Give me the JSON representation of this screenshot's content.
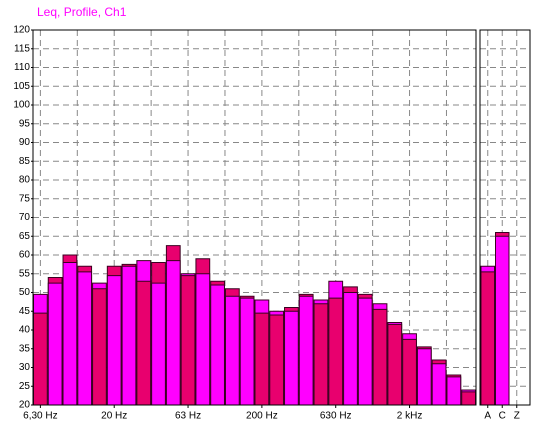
{
  "chart_data": [
    {
      "type": "bar",
      "title": "Leq, Profile, Ch1",
      "categories": [
        "6,30 Hz",
        null,
        null,
        null,
        null,
        "20 Hz",
        null,
        null,
        null,
        null,
        "63 Hz",
        null,
        null,
        null,
        null,
        "200 Hz",
        null,
        null,
        null,
        null,
        "630 Hz",
        null,
        null,
        null,
        null,
        "2 kHz",
        null,
        null,
        null,
        null
      ],
      "series": [
        {
          "color": "#ff00ff",
          "values": [
            49.5,
            52.5,
            58,
            55.5,
            52.5,
            54.5,
            57,
            58.5,
            52.5,
            58.5,
            55,
            55,
            52,
            49,
            48.5,
            48,
            45,
            45,
            49,
            48,
            53,
            50,
            48.5,
            47,
            42,
            39,
            35,
            31,
            27.5,
            24
          ]
        },
        {
          "color": "#e8006e",
          "values": [
            44.5,
            54,
            60,
            57,
            51,
            57,
            57.5,
            53,
            58,
            62.5,
            54.5,
            59,
            53,
            51,
            49,
            44.5,
            44,
            46,
            49.5,
            47,
            48.5,
            51.5,
            49.5,
            45.5,
            41.5,
            37.5,
            35.5,
            32,
            28,
            23.5
          ]
        }
      ],
      "ylim": [
        20,
        120
      ],
      "yticks": [
        20,
        25,
        30,
        35,
        40,
        45,
        50,
        55,
        60,
        65,
        70,
        75,
        80,
        85,
        90,
        95,
        100,
        105,
        110,
        115,
        120
      ],
      "grid": true
    },
    {
      "type": "bar",
      "categories": [
        "A",
        "C",
        "Z"
      ],
      "series": [
        {
          "color": "#ff00ff",
          "values": [
            57,
            65,
            null
          ]
        },
        {
          "color": "#e8006e",
          "values": [
            55.5,
            66,
            null
          ]
        }
      ],
      "ylim": [
        20,
        120
      ],
      "yticks": [
        20,
        25,
        30,
        35,
        40,
        45,
        50,
        55,
        60,
        65,
        70,
        75,
        80,
        85,
        90,
        95,
        100,
        105,
        110,
        115,
        120
      ],
      "grid": true
    }
  ]
}
